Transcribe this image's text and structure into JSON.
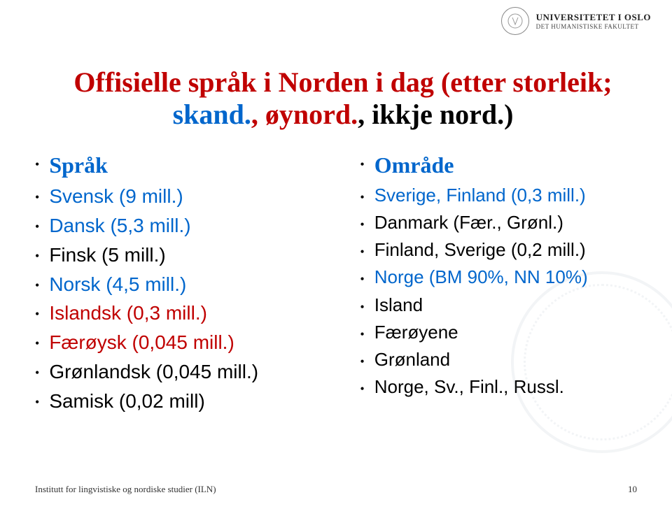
{
  "header": {
    "university": "UNIVERSITETET I OSLO",
    "faculty": "DET HUMANISTISKE FAKULTET"
  },
  "title": {
    "line1": "Offisielle språk i Norden i dag",
    "line2_plain": "(etter storleik; ",
    "line2_skand": "skand.",
    "line2_mid": ", ",
    "line2_oynord": "øynord.",
    "line2_end": ", ikkje nord.)"
  },
  "left": {
    "heading": "Språk",
    "items": [
      {
        "text": "Svensk (9 mill.)",
        "color": "blue"
      },
      {
        "text": "Dansk (5,3 mill.)",
        "color": "blue"
      },
      {
        "text": "Finsk (5 mill.)",
        "color": "black"
      },
      {
        "text": "Norsk (4,5 mill.)",
        "color": "blue"
      },
      {
        "text": "Islandsk (0,3 mill.)",
        "color": "red"
      },
      {
        "text": "Færøysk (0,045 mill.)",
        "color": "red"
      },
      {
        "text": "Grønlandsk (0,045 mill.)",
        "color": "black"
      },
      {
        "text": "Samisk (0,02 mill)",
        "color": "black"
      }
    ]
  },
  "right": {
    "heading": "Område",
    "items": [
      {
        "text": "Sverige, Finland (0,3 mill.)",
        "color": "blue"
      },
      {
        "text": "Danmark (Fær., Grønl.)",
        "color": "black"
      },
      {
        "text": "Finland, Sverige (0,2 mill.)",
        "color": "black"
      },
      {
        "text": "Norge (BM 90%, NN 10%)",
        "color": "blue"
      },
      {
        "text": "Island",
        "color": "black"
      },
      {
        "text": "Færøyene",
        "color": "black"
      },
      {
        "text": "Grønland",
        "color": "black"
      },
      {
        "text": "Norge, Sv., Finl., Russl.",
        "color": "black"
      }
    ]
  },
  "footer": {
    "institute": "Institutt for lingvistiske og nordiske studier (ILN)",
    "page": "10"
  },
  "colors": {
    "blue": "#0066cc",
    "red": "#c00000",
    "black": "#000000"
  }
}
